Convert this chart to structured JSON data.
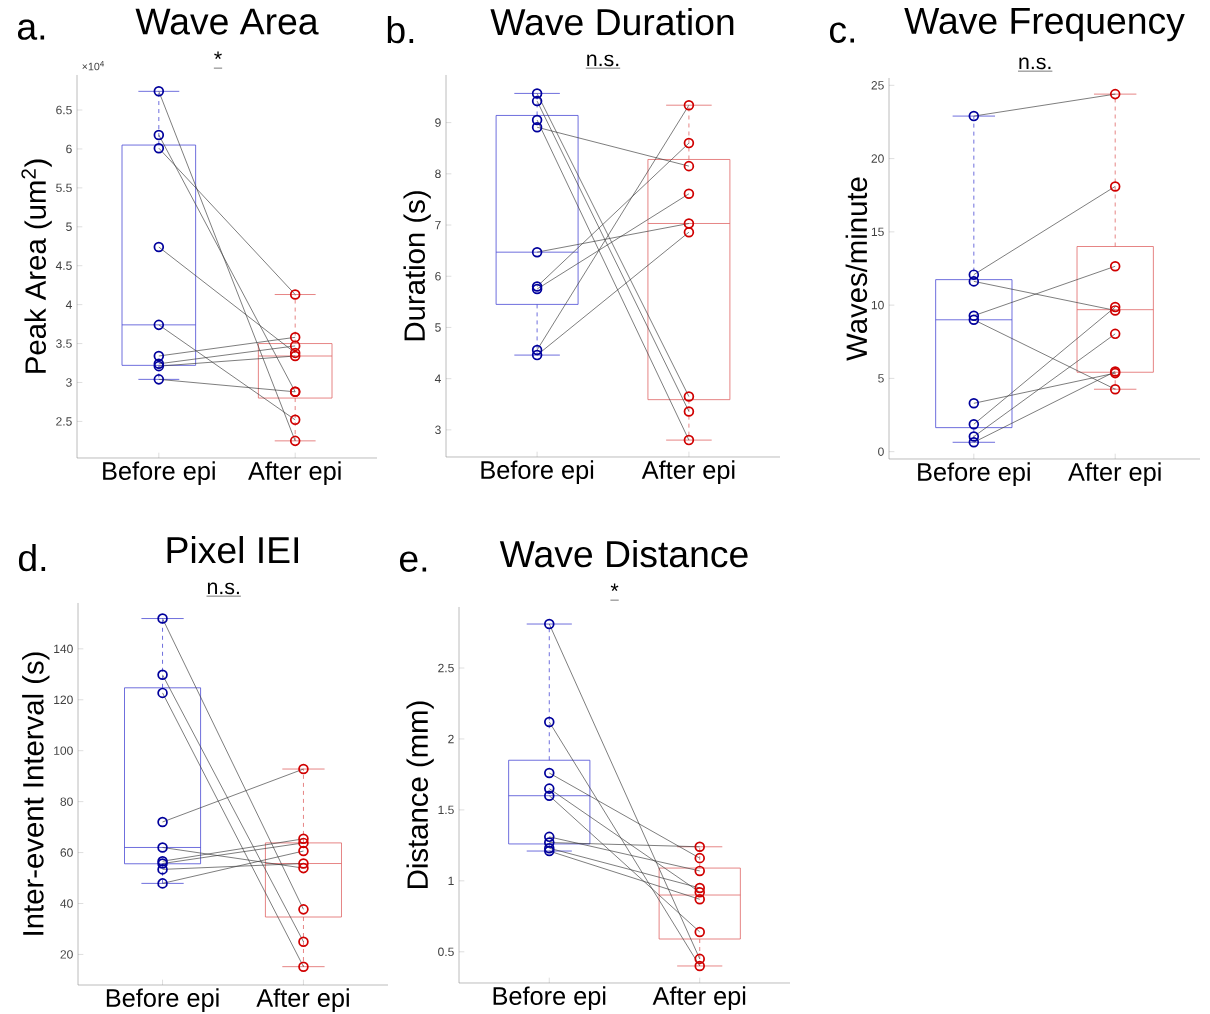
{
  "chart_data": [
    {
      "type": "box",
      "title": "Wave Area",
      "ylabel": "Peak Area (um$^{2}$)",
      "categories": [
        "Before epi",
        "After epi"
      ],
      "colors": [
        "#4a4ad4",
        "#e06666"
      ],
      "marker": "circle",
      "ylim": [
        2.03,
        6.95
      ],
      "yticks": [
        2.5,
        3,
        3.5,
        4,
        4.5,
        5,
        5.5,
        6,
        6.5
      ],
      "annotations": [
        "a.",
        "*",
        "×10$^{4}$"
      ],
      "boxes": [
        {
          "low": 3.04,
          "q1": 3.22,
          "median": 3.74,
          "q3": 6.05,
          "high": 6.74
        },
        {
          "low": 2.25,
          "q1": 2.8,
          "median": 3.34,
          "q3": 3.5,
          "high": 4.13
        }
      ],
      "series": [
        {
          "type": "line",
          "color": "#3c3c3c",
          "colors": [
            "#00009c",
            "#d00000"
          ],
          "values": [
            6.74,
            2.25
          ]
        },
        {
          "type": "line",
          "color": "#3c3c3c",
          "colors": [
            "#00009c",
            "#d00000"
          ],
          "values": [
            6.18,
            2.88
          ]
        },
        {
          "type": "line",
          "color": "#3c3c3c",
          "colors": [
            "#00009c",
            "#d00000"
          ],
          "values": [
            6.01,
            4.13
          ]
        },
        {
          "type": "line",
          "color": "#3c3c3c",
          "colors": [
            "#00009c",
            "#d00000"
          ],
          "values": [
            4.74,
            3.38
          ]
        },
        {
          "type": "line",
          "color": "#3c3c3c",
          "colors": [
            "#00009c",
            "#d00000"
          ],
          "values": [
            3.74,
            2.52
          ]
        },
        {
          "type": "line",
          "color": "#3c3c3c",
          "colors": [
            "#00009c",
            "#d00000"
          ],
          "values": [
            3.34,
            3.58
          ]
        },
        {
          "type": "line",
          "color": "#3c3c3c",
          "colors": [
            "#00009c",
            "#d00000"
          ],
          "values": [
            3.24,
            3.47
          ]
        },
        {
          "type": "line",
          "color": "#3c3c3c",
          "colors": [
            "#00009c",
            "#d00000"
          ],
          "values": [
            3.21,
            3.34
          ]
        },
        {
          "type": "line",
          "color": "#3c3c3c",
          "colors": [
            "#00009c",
            "#d00000"
          ],
          "values": [
            3.04,
            2.88
          ]
        }
      ]
    },
    {
      "type": "box",
      "title": "Wave Duration",
      "ylabel": "Duration (s)",
      "categories": [
        "Before epi",
        "After epi"
      ],
      "colors": [
        "#4a4ad4",
        "#e06666"
      ],
      "marker": "circle",
      "ylim": [
        2.47,
        9.93
      ],
      "yticks": [
        3,
        4,
        5,
        6,
        7,
        8,
        9
      ],
      "annotations": [
        "b.",
        "n.s."
      ],
      "boxes": [
        {
          "low": 4.46,
          "q1": 5.45,
          "median": 6.47,
          "q3": 9.14,
          "high": 9.57
        },
        {
          "low": 2.8,
          "q1": 3.59,
          "median": 7.03,
          "q3": 8.28,
          "high": 9.34
        }
      ],
      "series": [
        {
          "type": "line",
          "color": "#3c3c3c",
          "colors": [
            "#00009c",
            "#d00000"
          ],
          "values": [
            9.57,
            3.65
          ]
        },
        {
          "type": "line",
          "color": "#3c3c3c",
          "colors": [
            "#00009c",
            "#d00000"
          ],
          "values": [
            9.42,
            3.36
          ]
        },
        {
          "type": "line",
          "color": "#3c3c3c",
          "colors": [
            "#00009c",
            "#d00000"
          ],
          "values": [
            9.05,
            2.8
          ]
        },
        {
          "type": "line",
          "color": "#3c3c3c",
          "colors": [
            "#00009c",
            "#d00000"
          ],
          "values": [
            8.91,
            8.15
          ]
        },
        {
          "type": "line",
          "color": "#3c3c3c",
          "colors": [
            "#00009c",
            "#d00000"
          ],
          "values": [
            6.47,
            7.03
          ]
        },
        {
          "type": "line",
          "color": "#3c3c3c",
          "colors": [
            "#00009c",
            "#d00000"
          ],
          "values": [
            5.8,
            8.6
          ]
        },
        {
          "type": "line",
          "color": "#3c3c3c",
          "colors": [
            "#00009c",
            "#d00000"
          ],
          "values": [
            5.75,
            7.61
          ]
        },
        {
          "type": "line",
          "color": "#3c3c3c",
          "colors": [
            "#00009c",
            "#d00000"
          ],
          "values": [
            4.56,
            9.34
          ]
        },
        {
          "type": "line",
          "color": "#3c3c3c",
          "colors": [
            "#00009c",
            "#d00000"
          ],
          "values": [
            4.46,
            6.86
          ]
        }
      ]
    },
    {
      "type": "box",
      "title": "Wave Frequency",
      "ylabel": "Waves/minute",
      "categories": [
        "Before epi",
        "After epi"
      ],
      "colors": [
        "#4a4ad4",
        "#e06666"
      ],
      "marker": "circle",
      "ylim": [
        -0.5,
        25.5
      ],
      "yticks": [
        0,
        5,
        10,
        15,
        20,
        25
      ],
      "annotations": [
        "c.",
        "n.s."
      ],
      "boxes": [
        {
          "low": 0.64,
          "q1": 1.64,
          "median": 9.0,
          "q3": 11.74,
          "high": 22.9
        },
        {
          "low": 4.26,
          "q1": 5.42,
          "median": 9.69,
          "q3": 14.0,
          "high": 24.4
        }
      ],
      "series": [
        {
          "type": "line",
          "color": "#3c3c3c",
          "colors": [
            "#00009c",
            "#d00000"
          ],
          "values": [
            22.9,
            24.4
          ]
        },
        {
          "type": "line",
          "color": "#3c3c3c",
          "colors": [
            "#00009c",
            "#d00000"
          ],
          "values": [
            12.08,
            18.1
          ]
        },
        {
          "type": "line",
          "color": "#3c3c3c",
          "colors": [
            "#00009c",
            "#d00000"
          ],
          "values": [
            11.62,
            9.64
          ]
        },
        {
          "type": "line",
          "color": "#3c3c3c",
          "colors": [
            "#00009c",
            "#d00000"
          ],
          "values": [
            9.28,
            12.65
          ]
        },
        {
          "type": "line",
          "color": "#3c3c3c",
          "colors": [
            "#00009c",
            "#d00000"
          ],
          "values": [
            9.0,
            4.26
          ]
        },
        {
          "type": "line",
          "color": "#3c3c3c",
          "colors": [
            "#00009c",
            "#d00000"
          ],
          "values": [
            3.3,
            5.36
          ]
        },
        {
          "type": "line",
          "color": "#3c3c3c",
          "colors": [
            "#00009c",
            "#d00000"
          ],
          "values": [
            1.87,
            9.87
          ]
        },
        {
          "type": "line",
          "color": "#3c3c3c",
          "colors": [
            "#00009c",
            "#d00000"
          ],
          "values": [
            1.03,
            8.04
          ]
        },
        {
          "type": "line",
          "color": "#3c3c3c",
          "colors": [
            "#00009c",
            "#d00000"
          ],
          "values": [
            0.64,
            5.47
          ]
        }
      ]
    },
    {
      "type": "box",
      "title": "Pixel IEI",
      "ylabel": "Inter-event Interval (s)",
      "categories": [
        "Before epi",
        "After epi"
      ],
      "colors": [
        "#4a4ad4",
        "#e06666"
      ],
      "marker": "circle",
      "ylim": [
        8,
        158
      ],
      "yticks": [
        20,
        40,
        60,
        80,
        100,
        120,
        140
      ],
      "annotations": [
        "d.",
        "n.s."
      ],
      "boxes": [
        {
          "low": 47.9,
          "q1": 55.6,
          "median": 62.0,
          "q3": 124.7,
          "high": 151.9
        },
        {
          "low": 15.2,
          "q1": 34.7,
          "median": 55.7,
          "q3": 63.8,
          "high": 92.8
        }
      ],
      "series": [
        {
          "type": "line",
          "color": "#3c3c3c",
          "colors": [
            "#00009c",
            "#d00000"
          ],
          "values": [
            151.9,
            37.7
          ]
        },
        {
          "type": "line",
          "color": "#3c3c3c",
          "colors": [
            "#00009c",
            "#d00000"
          ],
          "values": [
            129.8,
            25.0
          ]
        },
        {
          "type": "line",
          "color": "#3c3c3c",
          "colors": [
            "#00009c",
            "#d00000"
          ],
          "values": [
            122.7,
            15.2
          ]
        },
        {
          "type": "line",
          "color": "#3c3c3c",
          "colors": [
            "#00009c",
            "#d00000"
          ],
          "values": [
            72.0,
            92.8
          ]
        },
        {
          "type": "line",
          "color": "#3c3c3c",
          "colors": [
            "#00009c",
            "#d00000"
          ],
          "values": [
            62.0,
            53.9
          ]
        },
        {
          "type": "line",
          "color": "#3c3c3c",
          "colors": [
            "#00009c",
            "#d00000"
          ],
          "values": [
            56.6,
            65.4
          ]
        },
        {
          "type": "line",
          "color": "#3c3c3c",
          "colors": [
            "#00009c",
            "#d00000"
          ],
          "values": [
            55.7,
            63.8
          ]
        },
        {
          "type": "line",
          "color": "#3c3c3c",
          "colors": [
            "#00009c",
            "#d00000"
          ],
          "values": [
            53.4,
            55.7
          ]
        },
        {
          "type": "line",
          "color": "#3c3c3c",
          "colors": [
            "#00009c",
            "#d00000"
          ],
          "values": [
            47.9,
            60.6
          ]
        }
      ]
    },
    {
      "type": "box",
      "title": "Wave Distance",
      "ylabel": "Distance (mm)",
      "categories": [
        "Before epi",
        "After epi"
      ],
      "colors": [
        "#4a4ad4",
        "#e06666"
      ],
      "marker": "circle",
      "ylim": [
        0.28,
        2.93
      ],
      "yticks": [
        0.5,
        1,
        1.5,
        2,
        2.5
      ],
      "annotations": [
        "e.",
        "*"
      ],
      "boxes": [
        {
          "low": 1.21,
          "q1": 1.26,
          "median": 1.6,
          "q3": 1.85,
          "high": 2.81
        },
        {
          "low": 0.4,
          "q1": 0.59,
          "median": 0.9,
          "q3": 1.09,
          "high": 1.24
        }
      ],
      "series": [
        {
          "type": "line",
          "color": "#3c3c3c",
          "colors": [
            "#00009c",
            "#d00000"
          ],
          "values": [
            2.81,
            0.45
          ]
        },
        {
          "type": "line",
          "color": "#3c3c3c",
          "colors": [
            "#00009c",
            "#d00000"
          ],
          "values": [
            2.12,
            0.4
          ]
        },
        {
          "type": "line",
          "color": "#3c3c3c",
          "colors": [
            "#00009c",
            "#d00000"
          ],
          "values": [
            1.76,
            1.16
          ]
        },
        {
          "type": "line",
          "color": "#3c3c3c",
          "colors": [
            "#00009c",
            "#d00000"
          ],
          "values": [
            1.65,
            0.92
          ]
        },
        {
          "type": "line",
          "color": "#3c3c3c",
          "colors": [
            "#00009c",
            "#d00000"
          ],
          "values": [
            1.6,
            0.64
          ]
        },
        {
          "type": "line",
          "color": "#3c3c3c",
          "colors": [
            "#00009c",
            "#d00000"
          ],
          "values": [
            1.31,
            1.07
          ]
        },
        {
          "type": "line",
          "color": "#3c3c3c",
          "colors": [
            "#00009c",
            "#d00000"
          ],
          "values": [
            1.27,
            1.24
          ]
        },
        {
          "type": "line",
          "color": "#3c3c3c",
          "colors": [
            "#00009c",
            "#d00000"
          ],
          "values": [
            1.23,
            0.95
          ]
        },
        {
          "type": "line",
          "color": "#3c3c3c",
          "colors": [
            "#00009c",
            "#d00000"
          ],
          "values": [
            1.21,
            0.87
          ]
        }
      ]
    }
  ]
}
